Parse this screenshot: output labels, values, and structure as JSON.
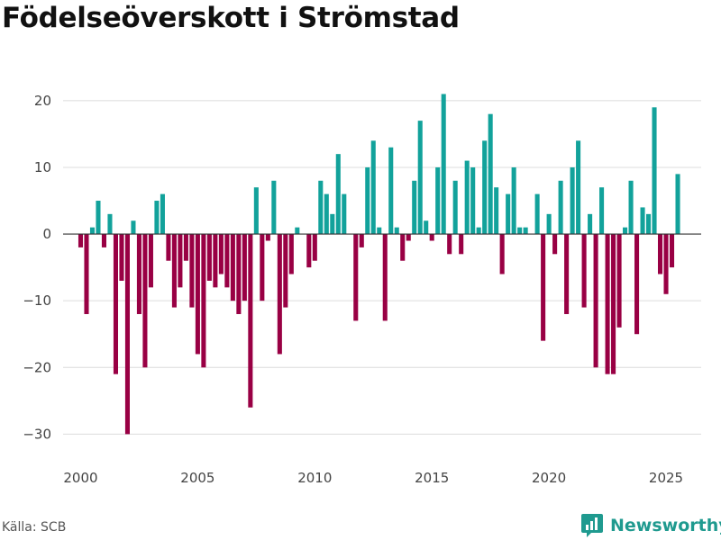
{
  "header": {
    "title": "Födelseöverskott i Strömstad"
  },
  "footer": {
    "source": "Källa: SCB",
    "brand": "Newsworthy"
  },
  "colors": {
    "positive": "#12a29b",
    "negative": "#990044",
    "grid": "#dcdcdc",
    "zero_line": "#333333",
    "brand": "#1f9a8f"
  },
  "chart_data": {
    "type": "bar",
    "title": "Födelseöverskott i Strömstad",
    "xlabel": "",
    "ylabel": "",
    "x_range": [
      1999.25,
      2026.5
    ],
    "ylim": [
      -34,
      27
    ],
    "y_ticks": [
      -30,
      -20,
      -10,
      0,
      10,
      20
    ],
    "x_ticks": [
      2000,
      2005,
      2010,
      2015,
      2020,
      2025
    ],
    "period": "quarterly",
    "series": [
      {
        "name": "Födelseöverskott",
        "start": "2000 Q1",
        "values": [
          -2,
          -12,
          1,
          5,
          -2,
          3,
          -21,
          -7,
          -30,
          2,
          -12,
          -20,
          -8,
          5,
          6,
          -4,
          -11,
          -8,
          -4,
          -11,
          -18,
          -20,
          -7,
          -8,
          -6,
          -8,
          -10,
          -12,
          -10,
          -26,
          7,
          -10,
          -1,
          8,
          -18,
          -11,
          -6,
          1,
          0,
          -5,
          -4,
          8,
          6,
          3,
          12,
          6,
          0,
          -13,
          -2,
          10,
          14,
          1,
          -13,
          13,
          1,
          -4,
          -1,
          8,
          17,
          2,
          -1,
          10,
          21,
          -3,
          8,
          -3,
          11,
          10,
          1,
          14,
          18,
          7,
          -6,
          6,
          10,
          1,
          1,
          0,
          6,
          -16,
          3,
          -3,
          8,
          -12,
          10,
          14,
          -11,
          3,
          -20,
          7,
          -21,
          -21,
          -14,
          1,
          8,
          -15,
          4,
          3,
          19,
          -6,
          -9,
          -5,
          9
        ]
      }
    ]
  }
}
